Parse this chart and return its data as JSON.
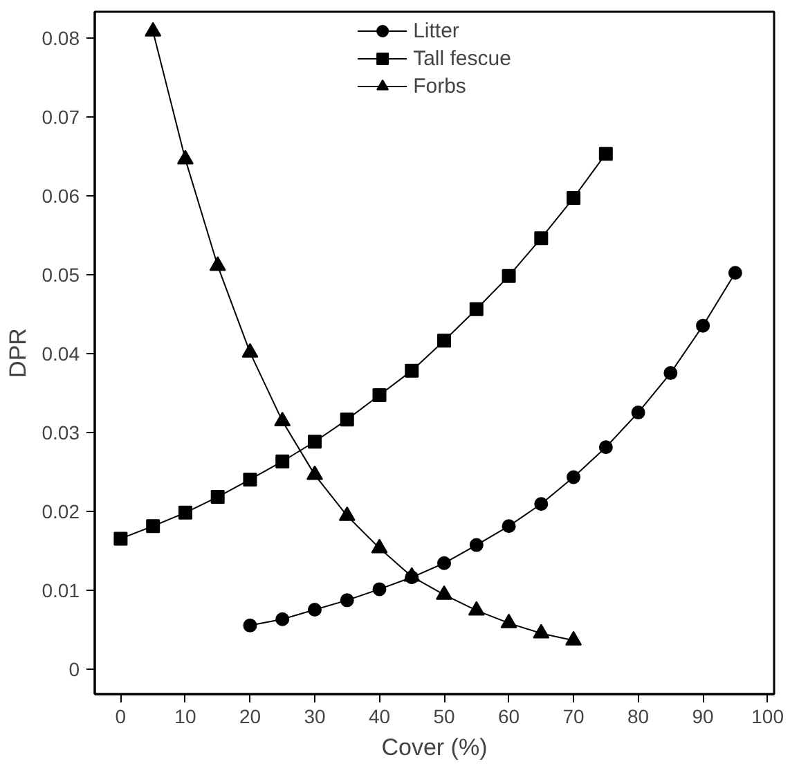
{
  "chart_data": {
    "type": "line",
    "xlabel": "Cover (%)",
    "ylabel": "DPR",
    "xlim": [
      -4,
      101
    ],
    "ylim": [
      -0.0032,
      0.0833
    ],
    "xticks": [
      0,
      10,
      20,
      30,
      40,
      50,
      60,
      70,
      80,
      90,
      100
    ],
    "yticks": [
      0,
      0.01,
      0.02,
      0.03,
      0.04,
      0.05,
      0.06,
      0.07,
      0.08
    ],
    "grid": false,
    "legend": "top",
    "line_style": "solid",
    "series": [
      {
        "name": "Litter",
        "color": "#000000",
        "marker": "circle",
        "x": [
          20,
          25,
          30,
          35,
          40,
          45,
          50,
          55,
          60,
          65,
          70,
          75,
          80,
          85,
          90,
          95
        ],
        "values": [
          0.0055,
          0.0063,
          0.0075,
          0.0087,
          0.0101,
          0.0116,
          0.0134,
          0.0157,
          0.0181,
          0.0209,
          0.0243,
          0.0281,
          0.0325,
          0.0375,
          0.0435,
          0.0502
        ]
      },
      {
        "name": "Tall fescue",
        "color": "#000000",
        "marker": "square",
        "x": [
          0,
          5,
          10,
          15,
          20,
          25,
          30,
          35,
          40,
          45,
          50,
          55,
          60,
          65,
          70,
          75
        ],
        "values": [
          0.0165,
          0.0181,
          0.0198,
          0.0218,
          0.024,
          0.0263,
          0.0288,
          0.0316,
          0.0347,
          0.0378,
          0.0416,
          0.0456,
          0.0498,
          0.0546,
          0.0597,
          0.0653
        ]
      },
      {
        "name": "Forbs",
        "color": "#000000",
        "marker": "triangle",
        "x": [
          5,
          10,
          15,
          20,
          25,
          30,
          35,
          40,
          45,
          50,
          55,
          60,
          65,
          70
        ],
        "values": [
          0.0808,
          0.0646,
          0.0511,
          0.0401,
          0.0314,
          0.0246,
          0.0194,
          0.0153,
          0.0117,
          0.0094,
          0.0074,
          0.0058,
          0.0045,
          0.0036
        ]
      }
    ]
  }
}
